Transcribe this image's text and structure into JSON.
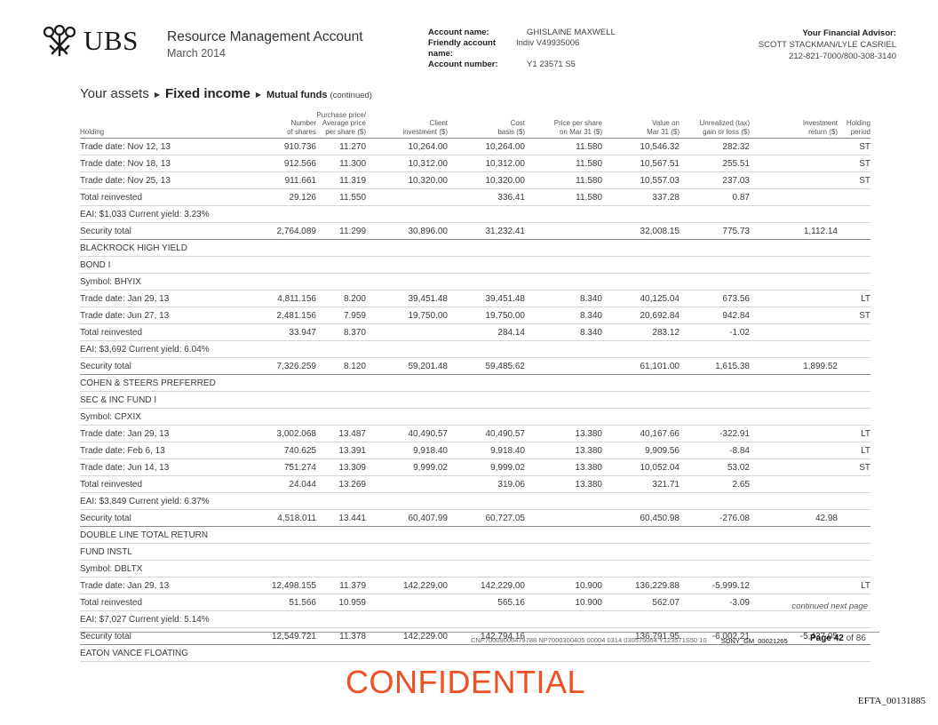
{
  "header": {
    "brand": "UBS",
    "report_title": "Resource Management Account",
    "report_date": "March 2014",
    "account_name_label": "Account name:",
    "account_name_value": "GHISLAINE MAXWELL",
    "friendly_label": "Friendly account name:",
    "friendly_value": "Indiv V49935006",
    "account_number_label": "Account number:",
    "account_number_value": "Y1 23571 S5",
    "advisor_label": "Your Financial Advisor:",
    "advisor_name": "SCOTT STACKMAN/LYLE CASRIEL",
    "advisor_phone": "212-821-7000/800-308-3140"
  },
  "section": {
    "your_assets": "Your assets",
    "fixed_income": "Fixed income",
    "mutual_funds": "Mutual funds",
    "continued": "(continued)"
  },
  "columns": {
    "holding": "Holding",
    "number_of_shares": [
      "Number",
      "of shares"
    ],
    "purchase_price": [
      "Purchase price/",
      "Average price",
      "per share ($)"
    ],
    "client_investment": [
      "Client",
      "investment ($)"
    ],
    "cost_basis": [
      "Cost",
      "basis ($)"
    ],
    "price_per_share": [
      "Price per share",
      "on Mar 31 ($)"
    ],
    "value_on": [
      "Value on",
      "Mar 31 ($)"
    ],
    "unrealized": [
      "Unrealized (tax)",
      "gain or loss ($)"
    ],
    "investment_return": [
      "Investment",
      "return ($)"
    ],
    "holding_period": [
      "Holding",
      "period"
    ]
  },
  "rows": [
    {
      "holding": "Trade date: Nov 12, 13",
      "shares": "910.736",
      "price": "11.270",
      "client": "10,264.00",
      "cost": "10,264.00",
      "pps": "11.580",
      "value": "10,546.32",
      "unreal": "282.32",
      "ret": "",
      "period": "ST"
    },
    {
      "holding": "Trade date: Nov 18, 13",
      "shares": "912.566",
      "price": "11.300",
      "client": "10,312.00",
      "cost": "10,312.00",
      "pps": "11.580",
      "value": "10,567.51",
      "unreal": "255.51",
      "ret": "",
      "period": "ST"
    },
    {
      "holding": "Trade date: Nov 25, 13",
      "shares": "911.661",
      "price": "11.319",
      "client": "10,320.00",
      "cost": "10,320.00",
      "pps": "11.580",
      "value": "10,557.03",
      "unreal": "237.03",
      "ret": "",
      "period": "ST"
    },
    {
      "holding": "Total reinvested",
      "shares": "29.126",
      "price": "11.550",
      "client": "",
      "cost": "336.41",
      "pps": "11.580",
      "value": "337.28",
      "unreal": "0.87",
      "ret": "",
      "period": ""
    },
    {
      "holding": "EAI: $1,033 Current yield: 3.23%",
      "shares": "",
      "price": "",
      "client": "",
      "cost": "",
      "pps": "",
      "value": "",
      "unreal": "",
      "ret": "",
      "period": ""
    },
    {
      "holding": "Security total",
      "shares": "2,764.089",
      "price": "11.299",
      "client": "30,896.00",
      "cost": "31,232.41",
      "pps": "",
      "value": "32,008.15",
      "unreal": "775.73",
      "ret": "1,112.14",
      "period": "",
      "total": true
    },
    {
      "holding": "BLACKROCK HIGH YIELD",
      "shares": "",
      "price": "",
      "client": "",
      "cost": "",
      "pps": "",
      "value": "",
      "unreal": "",
      "ret": "",
      "period": ""
    },
    {
      "holding": "BOND I",
      "shares": "",
      "price": "",
      "client": "",
      "cost": "",
      "pps": "",
      "value": "",
      "unreal": "",
      "ret": "",
      "period": ""
    },
    {
      "holding": "Symbol: BHYIX",
      "shares": "",
      "price": "",
      "client": "",
      "cost": "",
      "pps": "",
      "value": "",
      "unreal": "",
      "ret": "",
      "period": ""
    },
    {
      "holding": "Trade date: Jan 29, 13",
      "shares": "4,811.156",
      "price": "8.200",
      "client": "39,451.48",
      "cost": "39,451.48",
      "pps": "8.340",
      "value": "40,125.04",
      "unreal": "673.56",
      "ret": "",
      "period": "LT"
    },
    {
      "holding": "Trade date: Jun 27, 13",
      "shares": "2,481.156",
      "price": "7.959",
      "client": "19,750.00",
      "cost": "19,750.00",
      "pps": "8.340",
      "value": "20,692.84",
      "unreal": "942.84",
      "ret": "",
      "period": "ST"
    },
    {
      "holding": "Total reinvested",
      "shares": "33.947",
      "price": "8.370",
      "client": "",
      "cost": "284.14",
      "pps": "8.340",
      "value": "283.12",
      "unreal": "-1.02",
      "ret": "",
      "period": ""
    },
    {
      "holding": "EAI: $3,692 Current yield: 6.04%",
      "shares": "",
      "price": "",
      "client": "",
      "cost": "",
      "pps": "",
      "value": "",
      "unreal": "",
      "ret": "",
      "period": ""
    },
    {
      "holding": "Security total",
      "shares": "7,326.259",
      "price": "8.120",
      "client": "59,201.48",
      "cost": "59,485.62",
      "pps": "",
      "value": "61,101.00",
      "unreal": "1,615.38",
      "ret": "1,899.52",
      "period": "",
      "total": true
    },
    {
      "holding": "COHEN & STEERS PREFERRED",
      "shares": "",
      "price": "",
      "client": "",
      "cost": "",
      "pps": "",
      "value": "",
      "unreal": "",
      "ret": "",
      "period": ""
    },
    {
      "holding": "SEC & INC FUND I",
      "shares": "",
      "price": "",
      "client": "",
      "cost": "",
      "pps": "",
      "value": "",
      "unreal": "",
      "ret": "",
      "period": ""
    },
    {
      "holding": "Symbol: CPXIX",
      "shares": "",
      "price": "",
      "client": "",
      "cost": "",
      "pps": "",
      "value": "",
      "unreal": "",
      "ret": "",
      "period": ""
    },
    {
      "holding": "Trade date: Jan 29, 13",
      "shares": "3,002.068",
      "price": "13.487",
      "client": "40,490.57",
      "cost": "40,490.57",
      "pps": "13.380",
      "value": "40,167.66",
      "unreal": "-322.91",
      "ret": "",
      "period": "LT"
    },
    {
      "holding": "Trade date: Feb 6, 13",
      "shares": "740.625",
      "price": "13.391",
      "client": "9,918.40",
      "cost": "9,918.40",
      "pps": "13.380",
      "value": "9,909.56",
      "unreal": "-8.84",
      "ret": "",
      "period": "LT"
    },
    {
      "holding": "Trade date: Jun 14, 13",
      "shares": "751.274",
      "price": "13.309",
      "client": "9,999.02",
      "cost": "9,999.02",
      "pps": "13.380",
      "value": "10,052.04",
      "unreal": "53.02",
      "ret": "",
      "period": "ST"
    },
    {
      "holding": "Total reinvested",
      "shares": "24.044",
      "price": "13.269",
      "client": "",
      "cost": "319.06",
      "pps": "13.380",
      "value": "321.71",
      "unreal": "2.65",
      "ret": "",
      "period": ""
    },
    {
      "holding": "EAI: $3,849 Current yield: 6.37%",
      "shares": "",
      "price": "",
      "client": "",
      "cost": "",
      "pps": "",
      "value": "",
      "unreal": "",
      "ret": "",
      "period": ""
    },
    {
      "holding": "Security total",
      "shares": "4,518.011",
      "price": "13.441",
      "client": "60,407.99",
      "cost": "60,727.05",
      "pps": "",
      "value": "60,450.98",
      "unreal": "-276.08",
      "ret": "42.98",
      "period": "",
      "total": true
    },
    {
      "holding": "DOUBLE LINE TOTAL RETURN",
      "shares": "",
      "price": "",
      "client": "",
      "cost": "",
      "pps": "",
      "value": "",
      "unreal": "",
      "ret": "",
      "period": ""
    },
    {
      "holding": "FUND INSTL",
      "shares": "",
      "price": "",
      "client": "",
      "cost": "",
      "pps": "",
      "value": "",
      "unreal": "",
      "ret": "",
      "period": ""
    },
    {
      "holding": "Symbol: DBLTX",
      "shares": "",
      "price": "",
      "client": "",
      "cost": "",
      "pps": "",
      "value": "",
      "unreal": "",
      "ret": "",
      "period": ""
    },
    {
      "holding": "Trade date: Jan 29, 13",
      "shares": "12,498.155",
      "price": "11.379",
      "client": "142,229.00",
      "cost": "142,229.00",
      "pps": "10.900",
      "value": "136,229.88",
      "unreal": "-5,999.12",
      "ret": "",
      "period": "LT"
    },
    {
      "holding": "Total reinvested",
      "shares": "51.566",
      "price": "10.959",
      "client": "",
      "cost": "565.16",
      "pps": "10.900",
      "value": "562.07",
      "unreal": "-3.09",
      "ret": "",
      "period": ""
    },
    {
      "holding": "EAI: $7,027 Current yield: 5.14%",
      "shares": "",
      "price": "",
      "client": "",
      "cost": "",
      "pps": "",
      "value": "",
      "unreal": "",
      "ret": "",
      "period": ""
    },
    {
      "holding": "Security total",
      "shares": "12,549.721",
      "price": "11.378",
      "client": "142,229.00",
      "cost": "142,794.16",
      "pps": "",
      "value": "136,791.95",
      "unreal": "-6,002.21",
      "ret": "-5,437.05",
      "period": "",
      "total": true
    },
    {
      "holding": "EATON VANCE FLOATING",
      "shares": "",
      "price": "",
      "client": "",
      "cost": "",
      "pps": "",
      "value": "",
      "unreal": "",
      "ret": "",
      "period": ""
    }
  ],
  "footer": {
    "continued": "continued next page",
    "code": "CNP70009006479788 NP7000300405 00004 0314 030575004 Y123571S50 10",
    "bates": "SDNY_GM_00021265",
    "page_label": "Page",
    "page_number": "42",
    "page_of": "of 86"
  },
  "stamp": {
    "confidential": "CONFIDENTIAL",
    "efta": "EFTA_00131885"
  }
}
